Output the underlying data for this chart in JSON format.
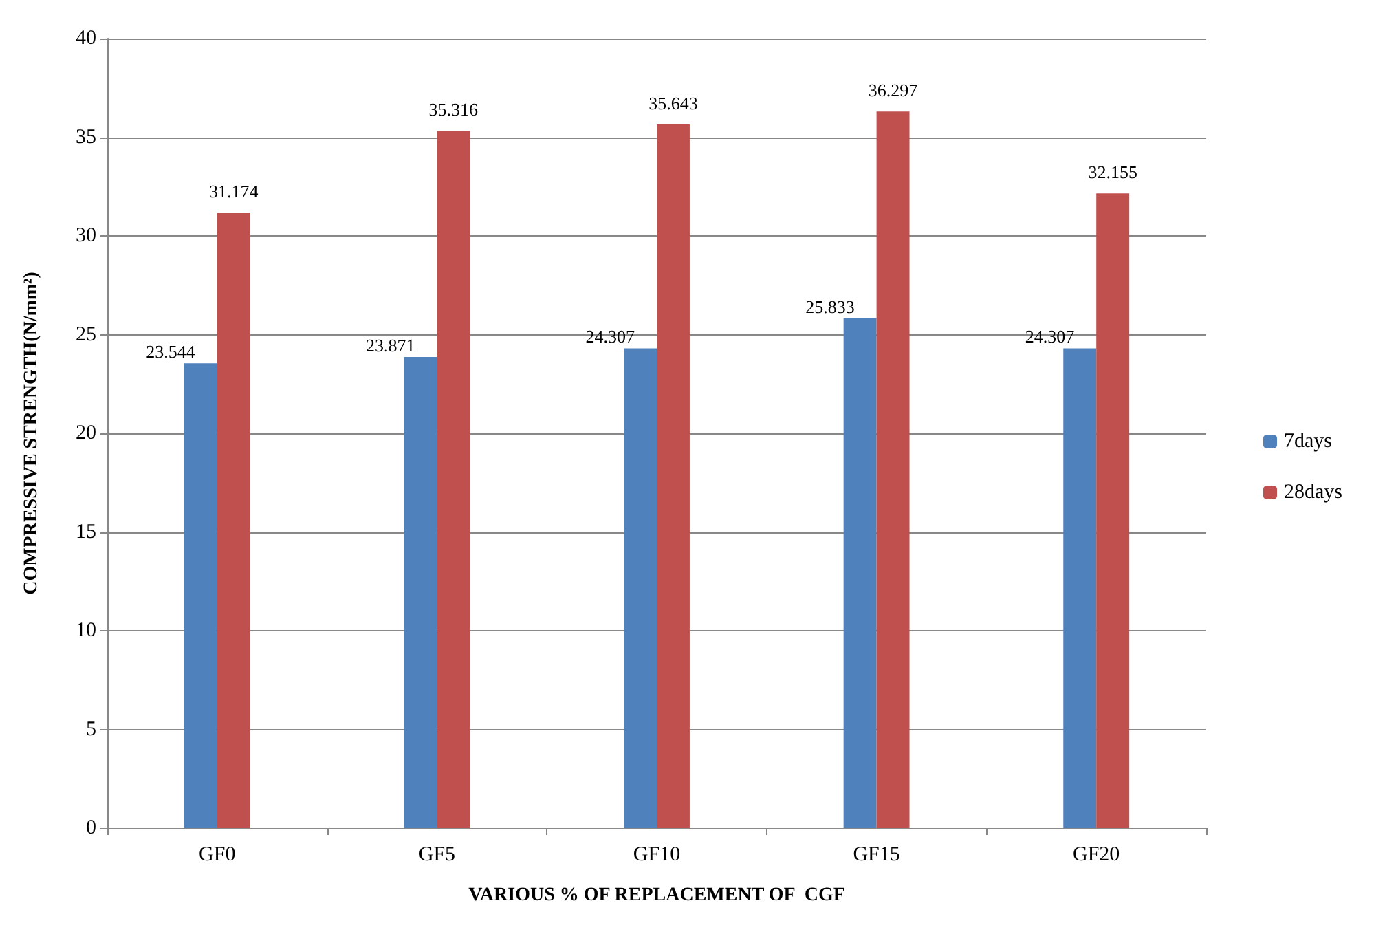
{
  "chart_data": {
    "type": "bar",
    "xlabel": "VARIOUS % OF REPLACEMENT OF  CGF",
    "ylabel": "COMPRESSIVE STRENGTH(N/mm²)",
    "categories": [
      "GF0",
      "GF5",
      "GF10",
      "GF15",
      "GF20"
    ],
    "series": [
      {
        "name": "7days",
        "color": "#4f81bd",
        "values": [
          23.544,
          23.871,
          24.307,
          25.833,
          24.307
        ]
      },
      {
        "name": "28days",
        "color": "#c0504d",
        "values": [
          31.174,
          35.316,
          35.643,
          36.297,
          32.155
        ]
      }
    ],
    "ylim": [
      0,
      40
    ],
    "yticks": [
      0,
      5,
      10,
      15,
      20,
      25,
      30,
      35,
      40
    ],
    "grid": "y",
    "legend": "right",
    "data_labels": true
  }
}
